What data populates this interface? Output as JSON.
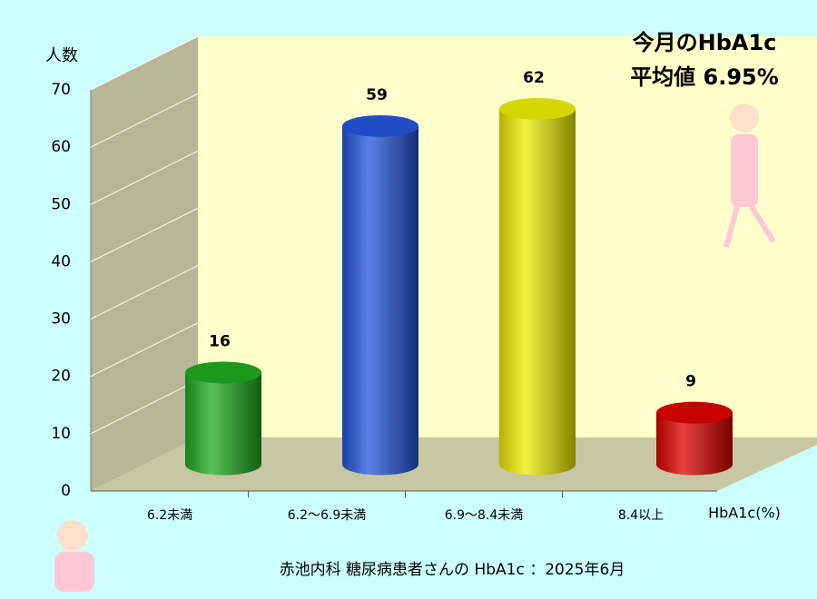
{
  "chart_data": {
    "type": "cylinder-bar",
    "annotations": [
      "今月のHbA1c",
      "平均値 6.95%"
    ],
    "ylabel": "人数",
    "xlabel": "HbA1c(%)",
    "footer": "赤池内科 糖尿病患者さんの HbA1c ：2025年6月",
    "categories": [
      "6.2未満",
      "6.2～6.9未満",
      "6.9～8.4未満",
      "8.4以上"
    ],
    "values": [
      16,
      59,
      62,
      9
    ],
    "colors": [
      "#1faa1f",
      "#2455dd",
      "#eeee00",
      "#dd0000"
    ],
    "ylim": [
      0,
      70
    ],
    "yticks": [
      0,
      10,
      20,
      30,
      40,
      50,
      60,
      70
    ],
    "grid": true
  }
}
